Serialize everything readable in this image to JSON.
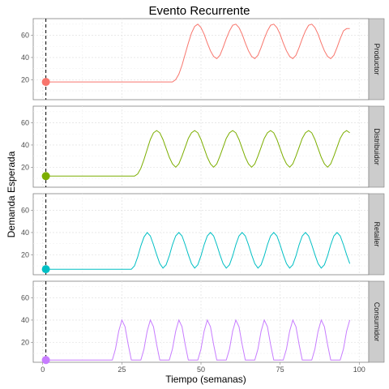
{
  "chart_data": {
    "type": "line",
    "title": "Evento Recurrente",
    "xlabel": "Tiempo (semanas)",
    "ylabel": "Demanda Esperada",
    "xlim": [
      -3,
      103
    ],
    "ylim": [
      2,
      75
    ],
    "x_ticks": [
      0,
      25,
      50,
      75,
      100
    ],
    "y_ticks": [
      20,
      40,
      60
    ],
    "grid": true,
    "reference_line_x": 1,
    "colors": [
      "#F8766D",
      "#7CAE00",
      "#00BFC4",
      "#C77CFF"
    ],
    "panels": [
      {
        "name": "Productor",
        "color": "#F8766D",
        "marker": {
          "x": 1,
          "y": 18
        },
        "x": [
          1,
          41,
          42,
          43,
          44,
          45,
          46,
          47,
          48,
          49,
          50,
          51,
          52,
          53,
          54,
          55,
          56,
          57,
          58,
          59,
          60,
          61,
          62,
          63,
          64,
          65,
          66,
          67,
          68,
          69,
          70,
          71,
          72,
          73,
          74,
          75,
          76,
          77,
          78,
          79,
          80,
          81,
          82,
          83,
          84,
          85,
          86,
          87,
          88,
          89,
          90,
          91,
          92,
          93,
          94,
          95,
          96,
          97
        ],
        "y": [
          18,
          18,
          20,
          25,
          33,
          43,
          53,
          62,
          68,
          70,
          67,
          61,
          53,
          46,
          41,
          39,
          42,
          49,
          57,
          64,
          69,
          70,
          67,
          61,
          53,
          46,
          41,
          39,
          42,
          49,
          57,
          64,
          69,
          70,
          67,
          61,
          53,
          46,
          41,
          39,
          42,
          49,
          57,
          64,
          69,
          70,
          67,
          61,
          53,
          46,
          41,
          39,
          42,
          49,
          57,
          64,
          66,
          66
        ]
      },
      {
        "name": "Distribuidor",
        "color": "#7CAE00",
        "marker": {
          "x": 1,
          "y": 12
        },
        "x": [
          1,
          29,
          30,
          31,
          32,
          33,
          34,
          35,
          36,
          37,
          38,
          39,
          40,
          41,
          42,
          43,
          44,
          45,
          46,
          47,
          48,
          49,
          50,
          51,
          52,
          53,
          54,
          55,
          56,
          57,
          58,
          59,
          60,
          61,
          62,
          63,
          64,
          65,
          66,
          67,
          68,
          69,
          70,
          71,
          72,
          73,
          74,
          75,
          76,
          77,
          78,
          79,
          80,
          81,
          82,
          83,
          84,
          85,
          86,
          87,
          88,
          89,
          90,
          91,
          92,
          93,
          94,
          95,
          96,
          97
        ],
        "y": [
          12,
          12,
          14,
          19,
          27,
          36,
          45,
          51,
          53,
          51,
          45,
          37,
          29,
          23,
          20,
          23,
          30,
          38,
          46,
          51,
          53,
          51,
          45,
          37,
          29,
          23,
          20,
          23,
          30,
          38,
          46,
          51,
          53,
          51,
          45,
          37,
          29,
          23,
          20,
          23,
          30,
          38,
          46,
          51,
          53,
          51,
          45,
          37,
          29,
          23,
          20,
          23,
          30,
          38,
          46,
          51,
          53,
          51,
          45,
          37,
          29,
          23,
          20,
          23,
          30,
          38,
          46,
          51,
          53,
          51
        ]
      },
      {
        "name": "Retailer",
        "color": "#00BFC4",
        "marker": {
          "x": 1,
          "y": 7
        },
        "x": [
          1,
          28,
          29,
          30,
          31,
          32,
          33,
          34,
          35,
          36,
          37,
          38,
          39,
          40,
          41,
          42,
          43,
          44,
          45,
          46,
          47,
          48,
          49,
          50,
          51,
          52,
          53,
          54,
          55,
          56,
          57,
          58,
          59,
          60,
          61,
          62,
          63,
          64,
          65,
          66,
          67,
          68,
          69,
          70,
          71,
          72,
          73,
          74,
          75,
          76,
          77,
          78,
          79,
          80,
          81,
          82,
          83,
          84,
          85,
          86,
          87,
          88,
          89,
          90,
          91,
          92,
          93,
          94,
          95,
          96,
          97
        ],
        "y": [
          7,
          7,
          10,
          18,
          28,
          36,
          40,
          37,
          29,
          20,
          12,
          8,
          11,
          19,
          29,
          37,
          40,
          37,
          29,
          20,
          12,
          8,
          11,
          19,
          29,
          37,
          40,
          37,
          29,
          20,
          12,
          8,
          11,
          19,
          29,
          37,
          40,
          37,
          29,
          20,
          12,
          8,
          11,
          19,
          29,
          37,
          40,
          37,
          29,
          20,
          12,
          8,
          11,
          19,
          29,
          37,
          40,
          37,
          29,
          20,
          12,
          8,
          11,
          19,
          29,
          37,
          40,
          37,
          29,
          20,
          12
        ]
      },
      {
        "name": "Consumidor",
        "color": "#C77CFF",
        "marker": {
          "x": 1,
          "y": 4
        },
        "x": [
          1,
          22,
          23,
          24,
          25,
          26,
          27,
          28,
          31,
          32,
          33,
          34,
          35,
          36,
          37,
          40,
          41,
          42,
          43,
          44,
          45,
          46,
          49,
          50,
          51,
          52,
          53,
          54,
          55,
          58,
          59,
          60,
          61,
          62,
          63,
          64,
          67,
          68,
          69,
          70,
          71,
          72,
          73,
          76,
          77,
          78,
          79,
          80,
          81,
          82,
          85,
          86,
          87,
          88,
          89,
          90,
          91,
          94,
          95,
          96,
          97
        ],
        "y": [
          4,
          4,
          14,
          30,
          40,
          34,
          18,
          4,
          4,
          14,
          30,
          40,
          34,
          18,
          4,
          4,
          14,
          30,
          40,
          34,
          18,
          4,
          4,
          14,
          30,
          40,
          34,
          18,
          4,
          4,
          14,
          30,
          40,
          34,
          18,
          4,
          4,
          14,
          30,
          40,
          34,
          18,
          4,
          4,
          14,
          30,
          40,
          34,
          18,
          4,
          4,
          14,
          30,
          40,
          34,
          18,
          4,
          4,
          14,
          30,
          40
        ]
      }
    ]
  }
}
